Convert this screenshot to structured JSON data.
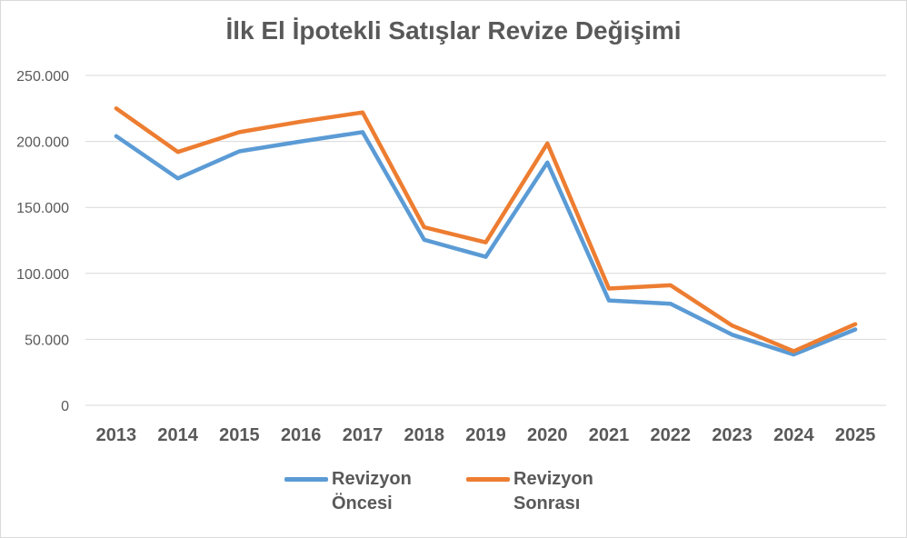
{
  "chart_data": {
    "type": "line",
    "title": "İlk El İpotekli Satışlar Revize Değişimi",
    "categories": [
      "2013",
      "2014",
      "2015",
      "2016",
      "2017",
      "2018",
      "2019",
      "2020",
      "2021",
      "2022",
      "2023",
      "2024",
      "2025"
    ],
    "series": [
      {
        "name": "Revizyon Öncesi",
        "color": "#5b9bd5",
        "values": [
          204000,
          172000,
          192500,
          200000,
          207000,
          125500,
          112500,
          184000,
          79500,
          77000,
          53500,
          38500,
          57500
        ]
      },
      {
        "name": "Revizyon Sonrası",
        "color": "#ed7d31",
        "values": [
          225000,
          192000,
          207000,
          215000,
          222000,
          135000,
          123500,
          198500,
          88500,
          91000,
          60500,
          41000,
          61500
        ]
      }
    ],
    "y_ticks": [
      "0",
      "50.000",
      "100.000",
      "150.000",
      "200.000",
      "250.000"
    ],
    "ylim": [
      0,
      250000
    ],
    "grid": true,
    "legend_position": "bottom"
  }
}
